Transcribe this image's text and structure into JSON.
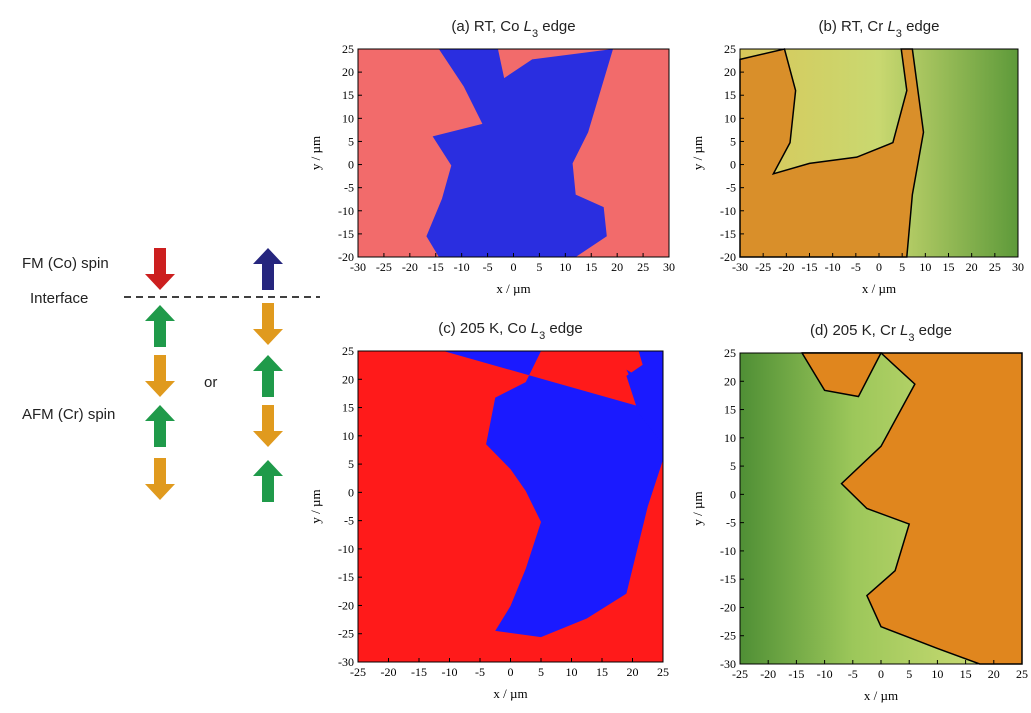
{
  "schematic": {
    "fm_label": "FM (Co) spin",
    "interface_label": "Interface",
    "afm_label": "AFM (Cr) spin",
    "or_label": "or"
  },
  "chart_data": [
    {
      "type": "map",
      "title": [
        "(a) RT, Co ",
        "L",
        "3",
        " edge"
      ],
      "xlabel": "x / µm",
      "ylabel": "y / µm",
      "xlim": [
        -30,
        30
      ],
      "ylim": [
        -20,
        25
      ],
      "xticks": [
        -30,
        -25,
        -20,
        -15,
        -10,
        -5,
        0,
        5,
        10,
        15,
        20,
        25,
        30
      ],
      "yticks": [
        -20,
        -15,
        -10,
        -5,
        0,
        5,
        10,
        15,
        20,
        25
      ]
    },
    {
      "type": "map",
      "title": [
        "(b) RT, Cr ",
        "L",
        "3",
        " edge"
      ],
      "xlabel": "x / µm",
      "ylabel": "y / µm",
      "xlim": [
        -30,
        30
      ],
      "ylim": [
        -20,
        25
      ],
      "xticks": [
        -30,
        -25,
        -20,
        -15,
        -10,
        -5,
        0,
        5,
        10,
        15,
        20,
        25,
        30
      ],
      "yticks": [
        -20,
        -15,
        -10,
        -5,
        0,
        5,
        10,
        15,
        20,
        25
      ]
    },
    {
      "type": "map",
      "title": [
        "(c) 205 K, Co ",
        "L",
        "3",
        " edge"
      ],
      "xlabel": "x / µm",
      "ylabel": "y / µm",
      "xlim": [
        -25,
        25
      ],
      "ylim": [
        -30,
        25
      ],
      "xticks": [
        -25,
        -20,
        -15,
        -10,
        -5,
        0,
        5,
        10,
        15,
        20,
        25
      ],
      "yticks": [
        -30,
        -25,
        -20,
        -15,
        -10,
        -5,
        0,
        5,
        10,
        15,
        20,
        25
      ]
    },
    {
      "type": "map",
      "title": [
        "(d) 205 K, Cr ",
        "L",
        "3",
        " edge"
      ],
      "xlabel": "x / µm",
      "ylabel": "y / µm",
      "xlim": [
        -25,
        25
      ],
      "ylim": [
        -30,
        25
      ],
      "xticks": [
        -25,
        -20,
        -15,
        -10,
        -5,
        0,
        5,
        10,
        15,
        20,
        25
      ],
      "yticks": [
        -30,
        -25,
        -20,
        -15,
        -10,
        -5,
        0,
        5,
        10,
        15,
        20,
        25
      ]
    }
  ]
}
